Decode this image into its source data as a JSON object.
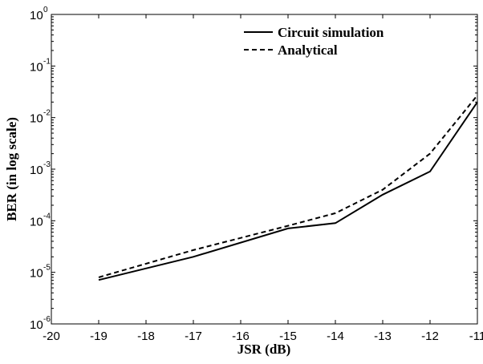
{
  "chart_data": {
    "type": "line",
    "title": "",
    "xlabel": "JSR (dB)",
    "ylabel": "BER (in log scale)",
    "xlim": [
      -20,
      -11
    ],
    "ylim": [
      1e-06,
      1
    ],
    "yscale": "log",
    "grid": false,
    "x_ticks": [
      -20,
      -19,
      -18,
      -17,
      -16,
      -15,
      -14,
      -13,
      -12,
      -11
    ],
    "y_ticks": [
      {
        "base": "10",
        "exp": "0",
        "value": 1
      },
      {
        "base": "10",
        "exp": "-1",
        "value": 0.1
      },
      {
        "base": "10",
        "exp": "-2",
        "value": 0.01
      },
      {
        "base": "10",
        "exp": "-3",
        "value": 0.001
      },
      {
        "base": "10",
        "exp": "-4",
        "value": 0.0001
      },
      {
        "base": "10",
        "exp": "-5",
        "value": 1e-05
      },
      {
        "base": "10",
        "exp": "-6",
        "value": 1e-06
      }
    ],
    "legend_position": "top-right",
    "series": [
      {
        "name": "Circuit simulation",
        "style": "solid",
        "x": [
          -19,
          -17,
          -15,
          -14,
          -13,
          -12,
          -11
        ],
        "y": [
          7.1e-06,
          2e-05,
          7.1e-05,
          9e-05,
          0.00032,
          0.0009,
          0.02
        ]
      },
      {
        "name": "Analytical",
        "style": "dashed",
        "x": [
          -19,
          -17,
          -15,
          -14,
          -13,
          -12,
          -11
        ],
        "y": [
          8e-06,
          2.7e-05,
          8e-05,
          0.00014,
          0.0004,
          0.002,
          0.027
        ]
      }
    ]
  }
}
